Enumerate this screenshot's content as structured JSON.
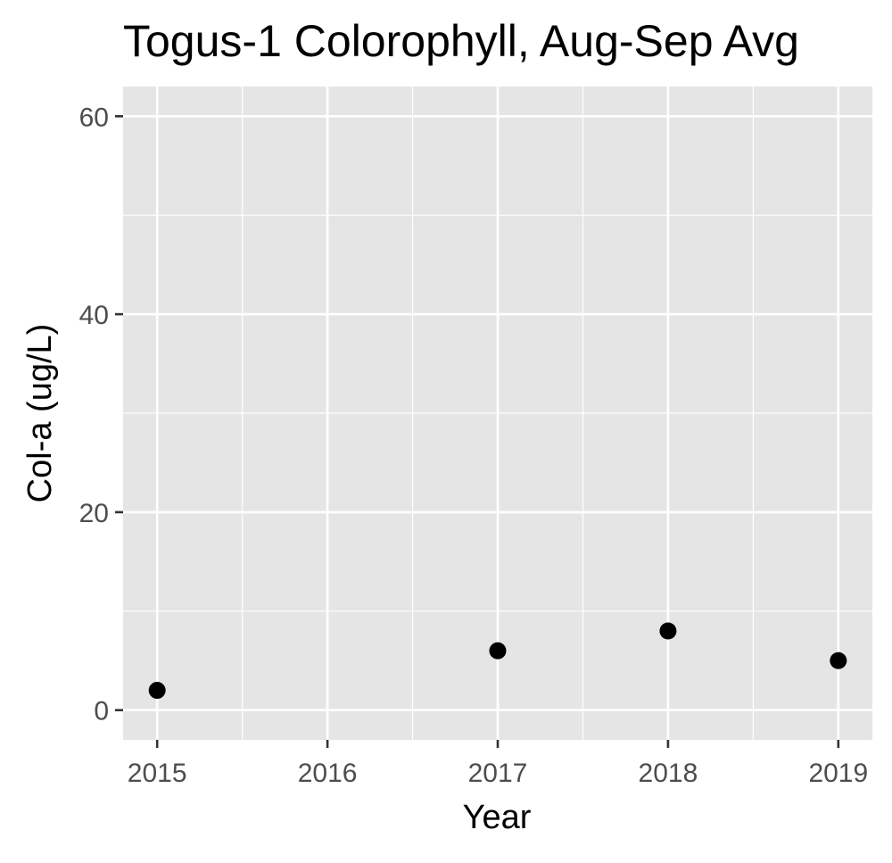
{
  "chart_data": {
    "type": "scatter",
    "title": "Togus-1 Colorophyll, Aug-Sep Avg",
    "xlabel": "Year",
    "ylabel": "Col-a (ug/L)",
    "x_ticks": [
      "2015",
      "2016",
      "2017",
      "2018",
      "2019"
    ],
    "y_ticks": [
      "0",
      "20",
      "40",
      "60"
    ],
    "xlim": [
      2014.8,
      2019.2
    ],
    "ylim": [
      -3,
      63
    ],
    "grid": true,
    "series": [
      {
        "x": [
          2015,
          2017,
          2018,
          2019
        ],
        "y": [
          2,
          6,
          8,
          5
        ]
      }
    ],
    "colors": {
      "panel_background": "#e5e5e5",
      "grid_line": "#ffffff",
      "point": "#000000",
      "tick_text": "#4d4d4d",
      "tick_mark": "#333333"
    }
  }
}
